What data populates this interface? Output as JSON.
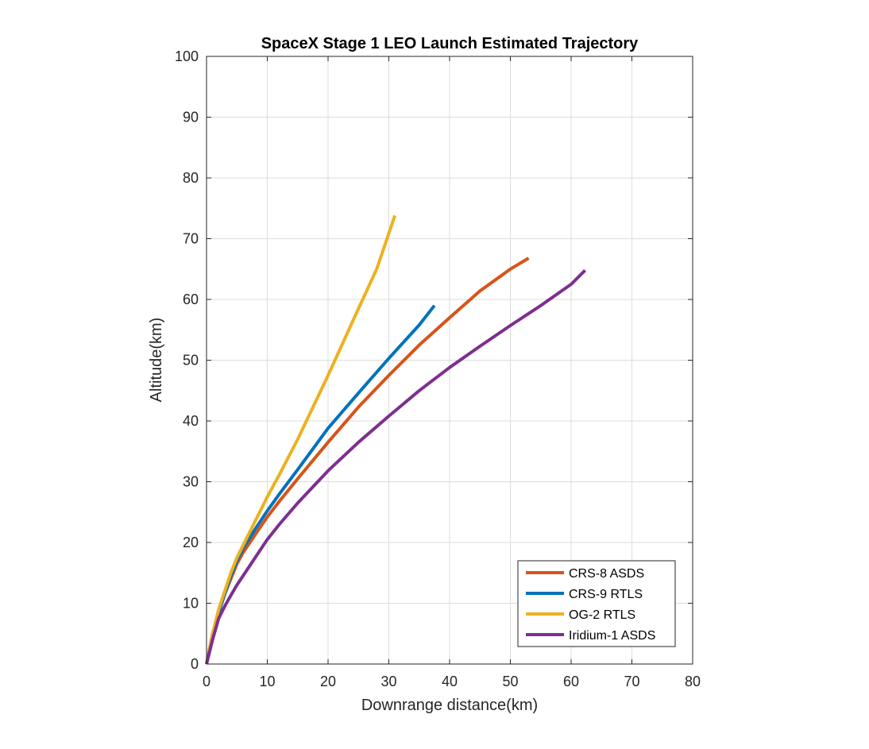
{
  "chart_data": {
    "type": "line",
    "title": "SpaceX Stage 1 LEO Launch Estimated Trajectory",
    "xlabel": "Downrange distance(km)",
    "ylabel": "Altitude(km)",
    "xlim": [
      0,
      80
    ],
    "ylim": [
      0,
      100
    ],
    "xticks": [
      0,
      10,
      20,
      30,
      40,
      50,
      60,
      70,
      80
    ],
    "yticks": [
      0,
      10,
      20,
      30,
      40,
      50,
      60,
      70,
      80,
      90,
      100
    ],
    "grid": true,
    "legend_position": "bottom-right",
    "series": [
      {
        "name": "CRS-8 ASDS",
        "color": "#D95319",
        "x": [
          0,
          1,
          2,
          3,
          4,
          5,
          6,
          8,
          10,
          12,
          15,
          20,
          25,
          30,
          35,
          40,
          45,
          50,
          53
        ],
        "y": [
          0,
          5,
          8.5,
          11.5,
          14,
          16.5,
          18.3,
          21.3,
          24.2,
          26.8,
          30.5,
          36.5,
          42.3,
          47.5,
          52.5,
          57,
          61.4,
          65,
          66.8
        ]
      },
      {
        "name": "CRS-9 RTLS",
        "color": "#0072BD",
        "x": [
          0,
          1,
          2,
          3,
          4,
          5,
          6,
          8,
          10,
          12,
          15,
          20,
          25,
          30,
          35,
          37.5
        ],
        "y": [
          0,
          5,
          8.5,
          11.5,
          14.5,
          17,
          19,
          22.2,
          25.2,
          28,
          32,
          38.8,
          44.6,
          50.3,
          55.8,
          59
        ]
      },
      {
        "name": "OG-2 RTLS",
        "color": "#EDB120",
        "x": [
          0,
          1,
          2,
          3,
          4,
          5,
          6,
          8,
          10,
          12,
          15,
          20,
          25,
          28,
          31
        ],
        "y": [
          0,
          5,
          9,
          12,
          15,
          17.5,
          19.5,
          23.5,
          27.5,
          31.2,
          37,
          47.5,
          58.5,
          65,
          73.8
        ]
      },
      {
        "name": "Iridium-1 ASDS",
        "color": "#7E2F8E",
        "x": [
          0,
          1,
          2,
          3,
          4,
          5,
          6,
          8,
          10,
          12,
          15,
          20,
          25,
          30,
          35,
          40,
          45,
          50,
          55,
          60,
          62.3
        ],
        "y": [
          0,
          4,
          7.5,
          9.5,
          11.3,
          13,
          14.5,
          17.5,
          20.5,
          23,
          26.5,
          31.8,
          36.5,
          40.8,
          45,
          48.8,
          52.3,
          55.7,
          59,
          62.5,
          64.8
        ]
      }
    ]
  }
}
